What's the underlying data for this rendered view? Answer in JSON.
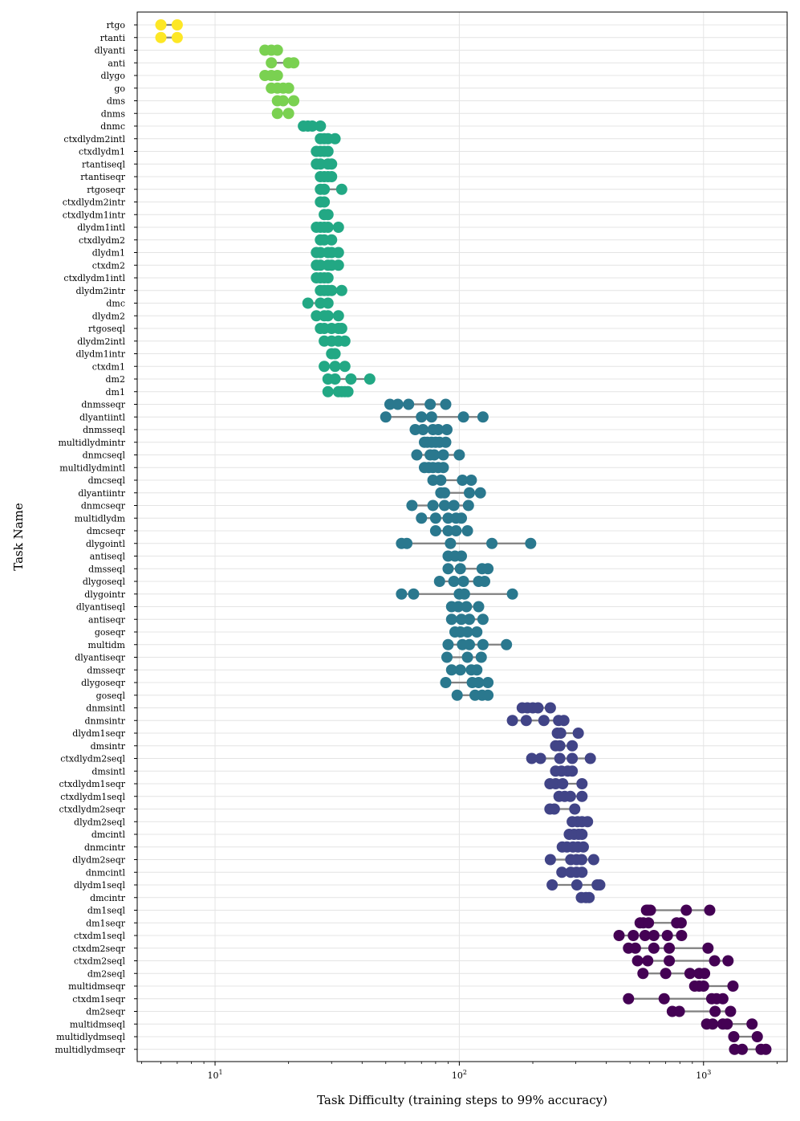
{
  "chart_data": {
    "type": "scatter",
    "orientation": "horizontal dot range plot",
    "xlabel": "Task Difficulty (training steps to 99% accuracy)",
    "ylabel": "Task Name",
    "xscale": "log",
    "xlim": [
      4.8,
      2200
    ],
    "xticks": [
      {
        "value": 10,
        "base": "10",
        "exp": "1"
      },
      {
        "value": 100,
        "base": "10",
        "exp": "2"
      },
      {
        "value": 1000,
        "base": "10",
        "exp": "3"
      }
    ],
    "grid": true,
    "colormap": "viridis",
    "series": [
      {
        "task": "rtgo",
        "color": "#fde725",
        "values": [
          6,
          7
        ]
      },
      {
        "task": "rtanti",
        "color": "#fde725",
        "values": [
          6,
          7
        ]
      },
      {
        "task": "dlyanti",
        "color": "#7ad151",
        "values": [
          16,
          17,
          18
        ]
      },
      {
        "task": "anti",
        "color": "#7ad151",
        "values": [
          17,
          20,
          21
        ]
      },
      {
        "task": "dlygo",
        "color": "#7ad151",
        "values": [
          16,
          17,
          18
        ]
      },
      {
        "task": "go",
        "color": "#7ad151",
        "values": [
          17,
          18,
          19,
          20
        ]
      },
      {
        "task": "dms",
        "color": "#7ad151",
        "values": [
          18,
          19,
          21
        ]
      },
      {
        "task": "dnms",
        "color": "#7ad151",
        "values": [
          18,
          20
        ]
      },
      {
        "task": "dnmc",
        "color": "#22a884",
        "values": [
          23,
          24,
          25,
          27
        ]
      },
      {
        "task": "ctxdlydm2intl",
        "color": "#22a884",
        "values": [
          27,
          28,
          29,
          31
        ]
      },
      {
        "task": "ctxdlydm1",
        "color": "#22a884",
        "values": [
          26,
          27,
          28,
          29
        ]
      },
      {
        "task": "rtantiseql",
        "color": "#22a884",
        "values": [
          26,
          27,
          29,
          30
        ]
      },
      {
        "task": "rtantiseqr",
        "color": "#22a884",
        "values": [
          27,
          28,
          29,
          30
        ]
      },
      {
        "task": "rtgoseqr",
        "color": "#22a884",
        "values": [
          27,
          28,
          33
        ]
      },
      {
        "task": "ctxdlydm2intr",
        "color": "#22a884",
        "values": [
          27,
          28
        ]
      },
      {
        "task": "ctxdlydm1intr",
        "color": "#22a884",
        "values": [
          28,
          29
        ]
      },
      {
        "task": "dlydm1intl",
        "color": "#22a884",
        "values": [
          26,
          27,
          28,
          29,
          32
        ]
      },
      {
        "task": "ctxdlydm2",
        "color": "#22a884",
        "values": [
          27,
          28,
          30
        ]
      },
      {
        "task": "dlydm1",
        "color": "#22a884",
        "values": [
          26,
          27,
          29,
          30,
          32
        ]
      },
      {
        "task": "ctxdm2",
        "color": "#22a884",
        "values": [
          26,
          27,
          29,
          30,
          32
        ]
      },
      {
        "task": "ctxdlydm1intl",
        "color": "#22a884",
        "values": [
          26,
          27,
          28,
          29
        ]
      },
      {
        "task": "dlydm2intr",
        "color": "#22a884",
        "values": [
          27,
          28,
          29,
          30,
          33
        ]
      },
      {
        "task": "dmc",
        "color": "#22a884",
        "values": [
          24,
          27,
          29
        ]
      },
      {
        "task": "dlydm2",
        "color": "#22a884",
        "values": [
          26,
          28,
          29,
          32
        ]
      },
      {
        "task": "rtgoseql",
        "color": "#22a884",
        "values": [
          27,
          28,
          30,
          32,
          33
        ]
      },
      {
        "task": "dlydm2intl",
        "color": "#22a884",
        "values": [
          28,
          30,
          32,
          34
        ]
      },
      {
        "task": "dlydm1intr",
        "color": "#22a884",
        "values": [
          30,
          31
        ]
      },
      {
        "task": "ctxdm1",
        "color": "#22a884",
        "values": [
          28,
          31,
          34
        ]
      },
      {
        "task": "dm2",
        "color": "#22a884",
        "values": [
          29,
          31,
          36,
          43
        ]
      },
      {
        "task": "dm1",
        "color": "#22a884",
        "values": [
          29,
          32,
          33,
          34,
          35
        ]
      },
      {
        "task": "dnmsseqr",
        "color": "#2a788e",
        "values": [
          52,
          56,
          62,
          76,
          88
        ]
      },
      {
        "task": "dlyantiintl",
        "color": "#2a788e",
        "values": [
          50,
          70,
          77,
          104,
          125
        ]
      },
      {
        "task": "dnmsseql",
        "color": "#2a788e",
        "values": [
          66,
          71,
          78,
          82,
          89
        ]
      },
      {
        "task": "multidlydmintr",
        "color": "#2a788e",
        "values": [
          72,
          74,
          77,
          80,
          83,
          88
        ]
      },
      {
        "task": "dnmcseql",
        "color": "#2a788e",
        "values": [
          67,
          76,
          79,
          86,
          100
        ]
      },
      {
        "task": "multidlydmintl",
        "color": "#2a788e",
        "values": [
          72,
          75,
          78,
          82,
          86
        ]
      },
      {
        "task": "dmcseql",
        "color": "#2a788e",
        "values": [
          78,
          84,
          103,
          112
        ]
      },
      {
        "task": "dlyantiintr",
        "color": "#2a788e",
        "values": [
          84,
          87,
          110,
          122
        ]
      },
      {
        "task": "dnmcseqr",
        "color": "#2a788e",
        "values": [
          64,
          78,
          87,
          95,
          109
        ]
      },
      {
        "task": "multidlydm",
        "color": "#2a788e",
        "values": [
          70,
          80,
          90,
          97,
          102
        ]
      },
      {
        "task": "dmcseqr",
        "color": "#2a788e",
        "values": [
          80,
          90,
          97,
          108
        ]
      },
      {
        "task": "dlygointl",
        "color": "#2a788e",
        "values": [
          58,
          61,
          92,
          136,
          196
        ]
      },
      {
        "task": "antiseql",
        "color": "#2a788e",
        "values": [
          90,
          96,
          102
        ]
      },
      {
        "task": "dmsseql",
        "color": "#2a788e",
        "values": [
          90,
          101,
          124,
          131
        ]
      },
      {
        "task": "dlygoseql",
        "color": "#2a788e",
        "values": [
          83,
          95,
          104,
          120,
          127
        ]
      },
      {
        "task": "dlygointr",
        "color": "#2a788e",
        "values": [
          58,
          65,
          100,
          105,
          165
        ]
      },
      {
        "task": "dlyantiseql",
        "color": "#2a788e",
        "values": [
          93,
          99,
          107,
          120
        ]
      },
      {
        "task": "antiseqr",
        "color": "#2a788e",
        "values": [
          93,
          102,
          110,
          125
        ]
      },
      {
        "task": "goseqr",
        "color": "#2a788e",
        "values": [
          96,
          101,
          108,
          118
        ]
      },
      {
        "task": "multidm",
        "color": "#2a788e",
        "values": [
          90,
          103,
          110,
          125,
          156
        ]
      },
      {
        "task": "dlyantiseqr",
        "color": "#2a788e",
        "values": [
          89,
          108,
          123
        ]
      },
      {
        "task": "dmsseqr",
        "color": "#2a788e",
        "values": [
          93,
          101,
          112,
          118
        ]
      },
      {
        "task": "dlygoseqr",
        "color": "#2a788e",
        "values": [
          88,
          113,
          120,
          131
        ]
      },
      {
        "task": "goseql",
        "color": "#2a788e",
        "values": [
          98,
          116,
          124,
          131
        ]
      },
      {
        "task": "dnmsintl",
        "color": "#414487",
        "values": [
          181,
          190,
          200,
          210,
          236
        ]
      },
      {
        "task": "dnmsintr",
        "color": "#414487",
        "values": [
          165,
          188,
          222,
          255,
          268
        ]
      },
      {
        "task": "dlydm1seqr",
        "color": "#414487",
        "values": [
          252,
          260,
          307
        ]
      },
      {
        "task": "dmsintr",
        "color": "#414487",
        "values": [
          248,
          258,
          290
        ]
      },
      {
        "task": "ctxdlydm2seql",
        "color": "#414487",
        "values": [
          198,
          215,
          258,
          290,
          344
        ]
      },
      {
        "task": "dmsintl",
        "color": "#414487",
        "values": [
          248,
          262,
          278,
          290
        ]
      },
      {
        "task": "ctxdlydm1seqr",
        "color": "#414487",
        "values": [
          235,
          248,
          265,
          318
        ]
      },
      {
        "task": "ctxdlydm1seql",
        "color": "#414487",
        "values": [
          256,
          270,
          285,
          318
        ]
      },
      {
        "task": "ctxdlydm2seqr",
        "color": "#414487",
        "values": [
          235,
          245,
          297
        ]
      },
      {
        "task": "dlydm2seql",
        "color": "#414487",
        "values": [
          290,
          305,
          318,
          335
        ]
      },
      {
        "task": "dmcintl",
        "color": "#414487",
        "values": [
          282,
          295,
          308,
          318
        ]
      },
      {
        "task": "dnmcintr",
        "color": "#414487",
        "values": [
          264,
          276,
          292,
          306,
          322
        ]
      },
      {
        "task": "dlydm2seqr",
        "color": "#414487",
        "values": [
          236,
          286,
          302,
          317,
          355
        ]
      },
      {
        "task": "dnmcintl",
        "color": "#414487",
        "values": [
          263,
          286,
          302,
          318
        ]
      },
      {
        "task": "dlydm1seql",
        "color": "#414487",
        "values": [
          240,
          303,
          367,
          376
        ]
      },
      {
        "task": "dmcintr",
        "color": "#414487",
        "values": [
          316,
          330,
          340
        ]
      },
      {
        "task": "dm1seql",
        "color": "#440154",
        "values": [
          584,
          592,
          606,
          850,
          1060
        ]
      },
      {
        "task": "dm1seqr",
        "color": "#440154",
        "values": [
          550,
          567,
          595,
          776,
          810
        ]
      },
      {
        "task": "ctxdm1seql",
        "color": "#440154",
        "values": [
          451,
          516,
          576,
          626,
          711,
          813
        ]
      },
      {
        "task": "ctxdm2seqr",
        "color": "#440154",
        "values": [
          493,
          526,
          626,
          724,
          1043
        ]
      },
      {
        "task": "ctxdm2seql",
        "color": "#440154",
        "values": [
          537,
          591,
          724,
          1110,
          1260
        ]
      },
      {
        "task": "dm2seql",
        "color": "#440154",
        "values": [
          565,
          700,
          880,
          960,
          1010
        ]
      },
      {
        "task": "multidmseqr",
        "color": "#440154",
        "values": [
          920,
          960,
          1000,
          1320
        ]
      },
      {
        "task": "ctxdm1seqr",
        "color": "#440154",
        "values": [
          493,
          690,
          1080,
          1130,
          1200
        ]
      },
      {
        "task": "dm2seqr",
        "color": "#440154",
        "values": [
          745,
          796,
          1115,
          1290
        ]
      },
      {
        "task": "multidmseql",
        "color": "#440154",
        "values": [
          1030,
          1090,
          1200,
          1250,
          1580
        ]
      },
      {
        "task": "multidlydmseql",
        "color": "#440154",
        "values": [
          1330,
          1660
        ]
      },
      {
        "task": "multidlydmseqr",
        "color": "#440154",
        "values": [
          1340,
          1440,
          1720,
          1800
        ]
      }
    ]
  }
}
